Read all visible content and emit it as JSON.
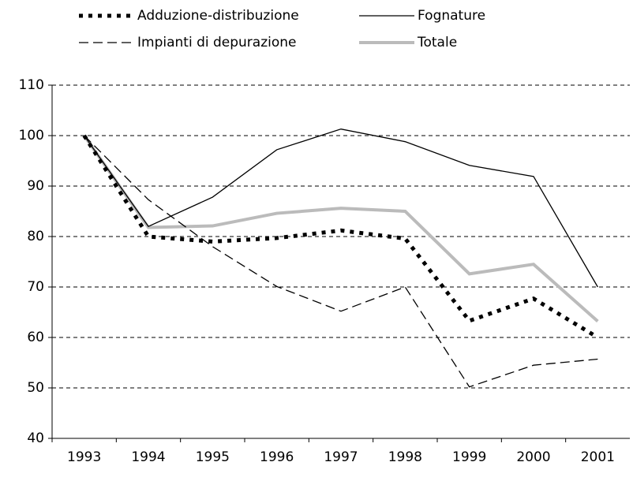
{
  "chart_data": {
    "type": "line",
    "categories": [
      "1993",
      "1994",
      "1995",
      "1996",
      "1997",
      "1998",
      "1999",
      "2000",
      "2001"
    ],
    "series": [
      {
        "name": "Adduzione-distribuzione",
        "color": "#000000",
        "style": "dotted",
        "values": [
          100,
          80,
          79,
          79.7,
          81.2,
          79.6,
          63.3,
          67.7,
          60
        ]
      },
      {
        "name": "Fognature",
        "color": "#000000",
        "style": "solid",
        "values": [
          100,
          82,
          87.8,
          97.2,
          101.3,
          98.8,
          94.1,
          91.9,
          70
        ]
      },
      {
        "name": "Impianti di depurazione",
        "color": "#000000",
        "style": "dashed",
        "values": [
          100,
          87.3,
          78,
          70.1,
          65.2,
          70,
          50.2,
          54.5,
          55.7
        ]
      },
      {
        "name": "Totale",
        "color": "#bbbbbb",
        "style": "thick",
        "values": [
          100,
          81.8,
          82.1,
          84.6,
          85.6,
          85,
          72.6,
          74.5,
          63.2
        ]
      }
    ],
    "ylim": [
      40,
      110
    ],
    "yticks": [
      40,
      50,
      60,
      70,
      80,
      90,
      100,
      110
    ],
    "grid": true
  }
}
